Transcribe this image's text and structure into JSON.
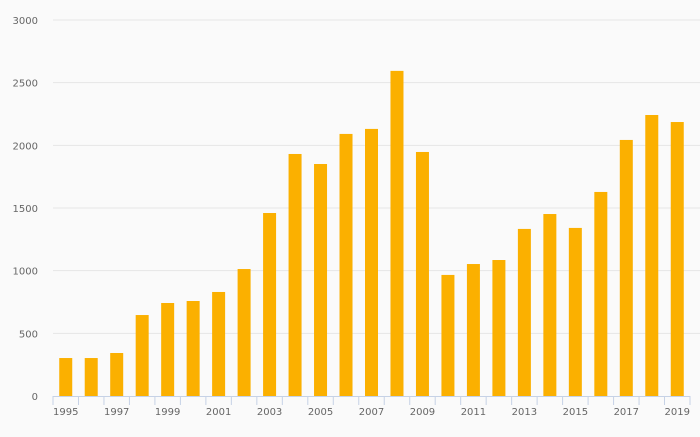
{
  "chart_data": {
    "type": "bar",
    "title": "",
    "xlabel": "",
    "ylabel": "",
    "ylim": [
      0,
      3000
    ],
    "yticks": [
      0,
      500,
      1000,
      1500,
      2000,
      2500,
      3000
    ],
    "grid": true,
    "bar_color": "#fbb000",
    "categories": [
      "1995",
      "1996",
      "1997",
      "1998",
      "1999",
      "2000",
      "2001",
      "2002",
      "2003",
      "2004",
      "2005",
      "2006",
      "2007",
      "2008",
      "2009",
      "2010",
      "2011",
      "2012",
      "2013",
      "2014",
      "2015",
      "2016",
      "2017",
      "2018",
      "2019"
    ],
    "values": [
      303,
      303,
      343,
      646,
      742,
      758,
      830,
      1013,
      1460,
      1931,
      1851,
      2091,
      2131,
      2594,
      1947,
      966,
      1053,
      1085,
      1333,
      1452,
      1341,
      1628,
      2043,
      2242,
      2186
    ],
    "xtick_labels": [
      "1995",
      "1997",
      "1999",
      "2001",
      "2003",
      "2005",
      "2007",
      "2009",
      "2011",
      "2013",
      "2015",
      "2017",
      "2019"
    ]
  }
}
